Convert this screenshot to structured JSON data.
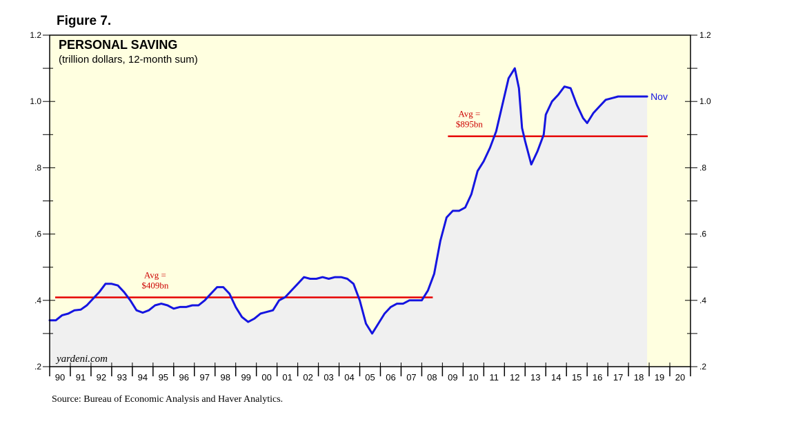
{
  "figure_label": "Figure 7.",
  "source": "Source: Bureau of Economic Analysis and Haver Analytics.",
  "colors": {
    "line": "#1515e0",
    "average": "#e60000",
    "plot_bg": "#ffffe0",
    "area_fill": "#f0f0f0",
    "avg_text": "#cc0000"
  },
  "chart_data": {
    "type": "line",
    "title": "PERSONAL SAVING",
    "subtitle": "(trillion dollars, 12-month sum)",
    "watermark": "yardeni.com",
    "end_label": "Nov",
    "xlim": [
      1990,
      2021
    ],
    "ylim": [
      0.2,
      1.2
    ],
    "y_ticks": [
      0.2,
      0.4,
      0.6,
      0.8,
      1.0,
      1.2
    ],
    "y_tick_labels": [
      ".2",
      ".4",
      ".6",
      ".8",
      "1.0",
      "1.2"
    ],
    "x_tick_labels": [
      "90",
      "91",
      "92",
      "93",
      "94",
      "95",
      "96",
      "97",
      "98",
      "99",
      "00",
      "01",
      "02",
      "03",
      "04",
      "05",
      "06",
      "07",
      "08",
      "09",
      "10",
      "11",
      "12",
      "13",
      "14",
      "15",
      "16",
      "17",
      "18",
      "19",
      "20"
    ],
    "series": [
      {
        "name": "Personal Saving",
        "x": [
          1990.0,
          1990.3,
          1990.6,
          1990.9,
          1991.2,
          1991.5,
          1991.8,
          1992.1,
          1992.4,
          1992.7,
          1993.0,
          1993.3,
          1993.6,
          1993.9,
          1994.2,
          1994.5,
          1994.8,
          1995.1,
          1995.4,
          1995.7,
          1996.0,
          1996.3,
          1996.6,
          1996.9,
          1997.2,
          1997.5,
          1997.8,
          1998.1,
          1998.4,
          1998.7,
          1999.0,
          1999.3,
          1999.6,
          1999.9,
          2000.2,
          2000.5,
          2000.8,
          2001.1,
          2001.4,
          2001.7,
          2002.0,
          2002.3,
          2002.6,
          2002.9,
          2003.2,
          2003.5,
          2003.8,
          2004.1,
          2004.4,
          2004.7,
          2005.0,
          2005.3,
          2005.6,
          2005.9,
          2006.2,
          2006.5,
          2006.8,
          2007.1,
          2007.4,
          2007.7,
          2008.0,
          2008.3,
          2008.6,
          2008.9,
          2009.2,
          2009.5,
          2009.8,
          2010.1,
          2010.4,
          2010.7,
          2011.0,
          2011.3,
          2011.6,
          2011.9,
          2012.2,
          2012.5,
          2012.7,
          2012.85,
          2013.0,
          2013.3,
          2013.6,
          2013.9,
          2014.0,
          2014.3,
          2014.6,
          2014.9,
          2015.2,
          2015.5,
          2015.8,
          2016.0,
          2016.3,
          2016.6,
          2016.9,
          2017.2,
          2017.5,
          2017.8,
          2018.1,
          2018.4,
          2018.7,
          2018.9
        ],
        "values": [
          0.34,
          0.34,
          0.355,
          0.36,
          0.37,
          0.372,
          0.385,
          0.405,
          0.425,
          0.45,
          0.45,
          0.445,
          0.425,
          0.4,
          0.37,
          0.363,
          0.37,
          0.385,
          0.39,
          0.385,
          0.375,
          0.38,
          0.38,
          0.385,
          0.385,
          0.4,
          0.42,
          0.44,
          0.44,
          0.42,
          0.38,
          0.35,
          0.335,
          0.345,
          0.36,
          0.365,
          0.37,
          0.4,
          0.41,
          0.43,
          0.45,
          0.47,
          0.465,
          0.465,
          0.47,
          0.465,
          0.47,
          0.47,
          0.465,
          0.45,
          0.4,
          0.33,
          0.3,
          0.33,
          0.36,
          0.38,
          0.39,
          0.39,
          0.4,
          0.4,
          0.4,
          0.43,
          0.48,
          0.58,
          0.65,
          0.67,
          0.67,
          0.68,
          0.72,
          0.79,
          0.82,
          0.86,
          0.91,
          0.99,
          1.07,
          1.1,
          1.04,
          0.92,
          0.88,
          0.81,
          0.85,
          0.9,
          0.96,
          1.0,
          1.02,
          1.045,
          1.04,
          0.99,
          0.95,
          0.935,
          0.965,
          0.985,
          1.005,
          1.01,
          1.015,
          1.015,
          1.015,
          1.015,
          1.015,
          1.015
        ]
      }
    ],
    "averages": [
      {
        "label_line1": "Avg =",
        "label_line2": "$409bn",
        "value": 0.409,
        "x_start": 1990.0,
        "x_end": 2008.6
      },
      {
        "label_line1": "Avg =",
        "label_line2": "$895bn",
        "value": 0.895,
        "x_start": 2009.0,
        "x_end": 2019.0
      }
    ]
  }
}
